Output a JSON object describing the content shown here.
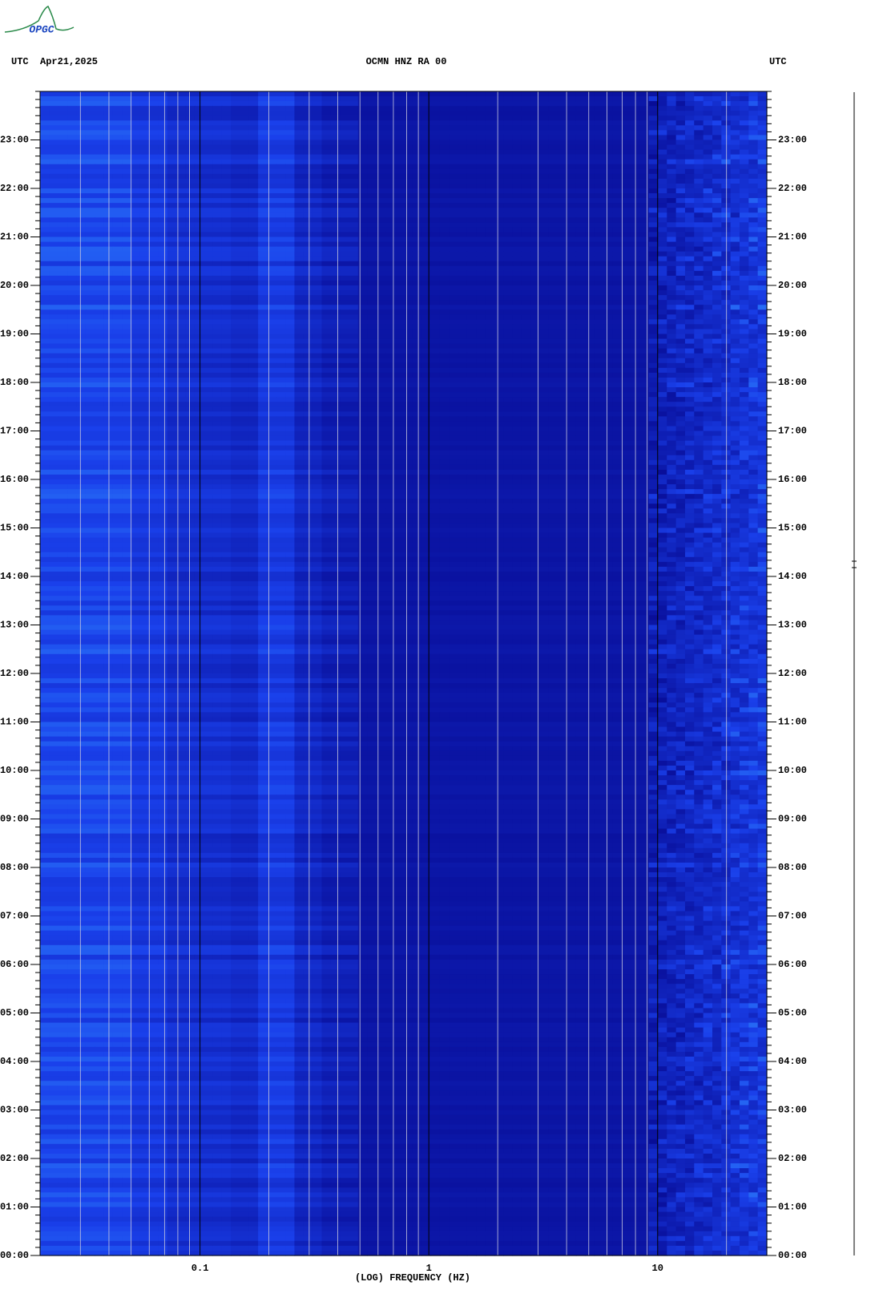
{
  "chart_data": {
    "type": "spectrogram",
    "logo": "OPGC",
    "title": "OCMN HNZ RA 00",
    "left_zone_label": "UTC",
    "date": "Apr21,2025",
    "right_zone_label": "UTC",
    "xlabel": "(LOG) FREQUENCY (HZ)",
    "xlim": [
      0.02,
      30
    ],
    "xticks": [
      0.1,
      1,
      10
    ],
    "log_x": true,
    "grid": true,
    "ylim": [
      0,
      24
    ],
    "yticks": [
      {
        "value": 0,
        "label": "00:00"
      },
      {
        "value": 1,
        "label": "01:00"
      },
      {
        "value": 2,
        "label": "02:00"
      },
      {
        "value": 3,
        "label": "03:00"
      },
      {
        "value": 4,
        "label": "04:00"
      },
      {
        "value": 5,
        "label": "05:00"
      },
      {
        "value": 6,
        "label": "06:00"
      },
      {
        "value": 7,
        "label": "07:00"
      },
      {
        "value": 8,
        "label": "08:00"
      },
      {
        "value": 9,
        "label": "09:00"
      },
      {
        "value": 10,
        "label": "10:00"
      },
      {
        "value": 11,
        "label": "11:00"
      },
      {
        "value": 12,
        "label": "12:00"
      },
      {
        "value": 13,
        "label": "13:00"
      },
      {
        "value": 14,
        "label": "14:00"
      },
      {
        "value": 15,
        "label": "15:00"
      },
      {
        "value": 16,
        "label": "16:00"
      },
      {
        "value": 17,
        "label": "17:00"
      },
      {
        "value": 18,
        "label": "18:00"
      },
      {
        "value": 19,
        "label": "19:00"
      },
      {
        "value": 20,
        "label": "20:00"
      },
      {
        "value": 21,
        "label": "21:00"
      },
      {
        "value": 22,
        "label": "22:00"
      },
      {
        "value": 23,
        "label": "23:00"
      }
    ]
  }
}
